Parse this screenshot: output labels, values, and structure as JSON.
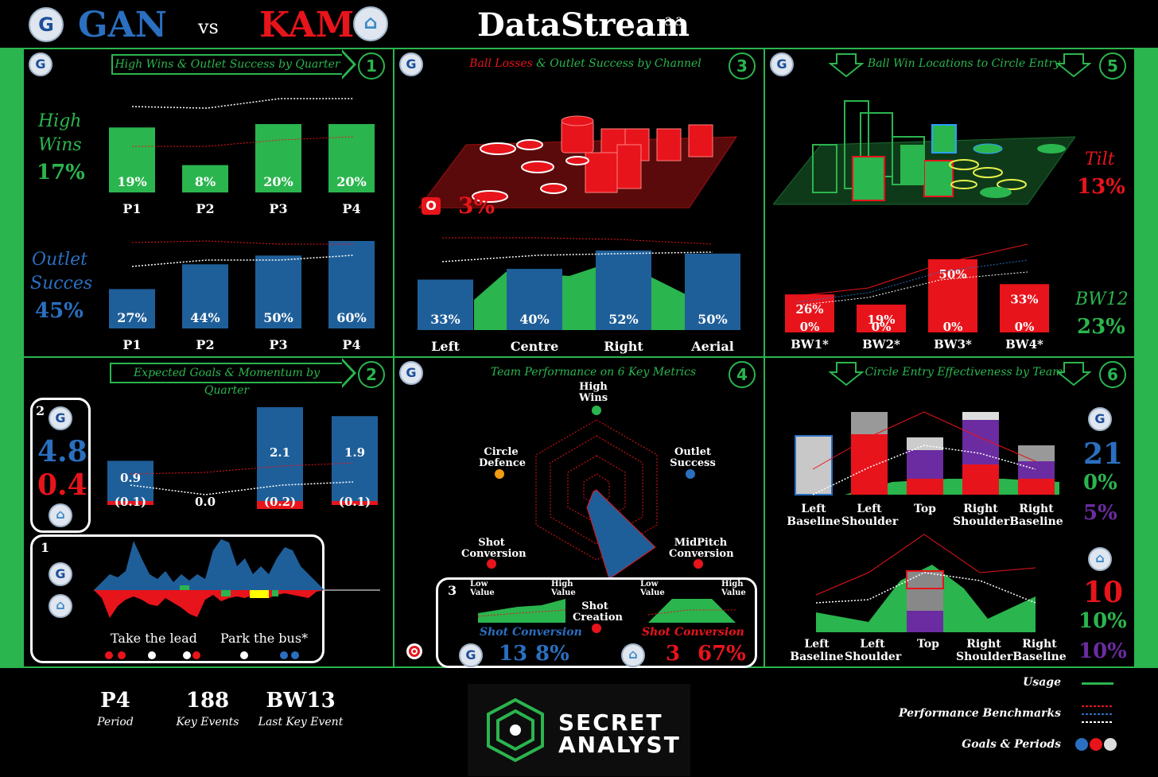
{
  "header": {
    "home_team": "GAN",
    "vs": "vs",
    "away_team": "KAM",
    "app_title": "DataStream",
    "version": "3.3"
  },
  "colors": {
    "green": "#2bb54e",
    "blue": "#1f5f99",
    "red": "#e8141b",
    "purple": "#6a2ca0"
  },
  "panels": {
    "p1": {
      "title": "High Wins & Outlet Success by Quarter",
      "number": "1",
      "high_label_1": "High",
      "high_label_2": "Wins",
      "high_value": "17%",
      "outlet_label_1": "Outlet",
      "outlet_label_2": "Succes",
      "outlet_value": "45%"
    },
    "p2": {
      "title": "Expected Goals & Momentum by Quarter",
      "number": "2",
      "box_number": "2",
      "home_xg": "4.8",
      "away_xg": "0.4",
      "momentum_box_number": "1",
      "take_lead": "Take the lead",
      "park_bus": "Park the bus*"
    },
    "p3": {
      "title_red": "Ball Losses",
      "title_green": " & Outlet Success by Channel",
      "number": "3",
      "loss_value": "3%",
      "loss_icon": "O"
    },
    "p4": {
      "title": "Team Performance on 6 Key Metrics",
      "number": "4",
      "metrics": [
        "High Wins",
        "Outlet Success",
        "MidPitch Conversion",
        "Shot Creation",
        "Shot Conversion",
        "Circle Defence"
      ],
      "box_number": "3",
      "low_value": "Low Value",
      "high_value": "High Value",
      "shot_conversion": "Shot Conversion",
      "home_shots": "13",
      "home_pct": "8%",
      "away_shots": "3",
      "away_pct": "67%"
    },
    "p5": {
      "title": "Ball Win Locations to Circle Entry",
      "number": "5",
      "tilt_label": "Tilt",
      "tilt_value": "13%",
      "bw_label": "BW12",
      "bw_value": "23%"
    },
    "p6": {
      "title": "Circle Entry Effectiveness by Team",
      "number": "6",
      "home_entries": "21",
      "home_green": "0%",
      "home_purple": "5%",
      "away_entries": "10",
      "away_green": "10%",
      "away_purple": "10%"
    }
  },
  "footer": {
    "period_value": "P4",
    "period_label": "Period",
    "events_value": "188",
    "events_label": "Key Events",
    "last_value": "BW13",
    "last_label": "Last Key Event",
    "brand_1": "SECRET",
    "brand_2": "ANALYST",
    "legend_usage": "Usage",
    "legend_benchmarks": "Performance Benchmarks",
    "legend_goals": "Goals & Periods"
  },
  "chart_data": [
    {
      "id": "high-wins",
      "type": "bar",
      "categories": [
        "P1",
        "P2",
        "P3",
        "P4"
      ],
      "values": [
        19,
        8,
        20,
        20
      ],
      "labels": [
        "19%",
        "8%",
        "20%",
        "20%"
      ],
      "color": "#2bb54e"
    },
    {
      "id": "outlet-success",
      "type": "bar",
      "categories": [
        "P1",
        "P2",
        "P3",
        "P4"
      ],
      "values": [
        27,
        44,
        50,
        60
      ],
      "labels": [
        "27%",
        "44%",
        "50%",
        "60%"
      ],
      "color": "#1f5f99"
    },
    {
      "id": "channel-outlet",
      "type": "bar",
      "categories": [
        "Left",
        "Centre",
        "Right",
        "Aerial"
      ],
      "values": [
        33,
        40,
        52,
        50
      ],
      "labels": [
        "33%",
        "40%",
        "52%",
        "50%"
      ],
      "color": "#1f5f99"
    },
    {
      "id": "xg-quarter",
      "type": "bar",
      "categories": [
        "P1",
        "P2",
        "P3",
        "P4"
      ],
      "series": [
        {
          "values": [
            0.9,
            0.0,
            2.1,
            1.9
          ],
          "labels": [
            "0.9",
            "0.0",
            "2.1",
            "1.9"
          ]
        },
        {
          "values": [
            0.1,
            0.0,
            0.2,
            0.1
          ],
          "labels": [
            "(0.1)",
            "",
            "(0.2)",
            "(0.1)"
          ]
        }
      ]
    },
    {
      "id": "ball-win",
      "type": "bar",
      "categories": [
        "BW1*",
        "BW2*",
        "BW3*",
        "BW4*"
      ],
      "values": [
        26,
        19,
        50,
        33
      ],
      "labels": [
        "26%",
        "19%",
        "50%",
        "33%"
      ],
      "sub_labels": [
        "0%",
        "0%",
        "0%",
        "0%"
      ],
      "color": "#e8141b"
    },
    {
      "id": "radar",
      "type": "radar",
      "axes": [
        "High Wins",
        "Outlet Success",
        "MidPitch Conversion",
        "Shot Creation",
        "Shot Conversion",
        "Circle Defence"
      ]
    },
    {
      "id": "circle-entry-home",
      "type": "bar",
      "categories": [
        "Left Baseline",
        "Left Shoulder",
        "Top",
        "Right Shoulder",
        "Right Baseline"
      ]
    },
    {
      "id": "circle-entry-away",
      "type": "bar",
      "categories": [
        "Left Baseline",
        "Left Shoulder",
        "Top",
        "Right Shoulder",
        "Right Baseline"
      ]
    }
  ]
}
